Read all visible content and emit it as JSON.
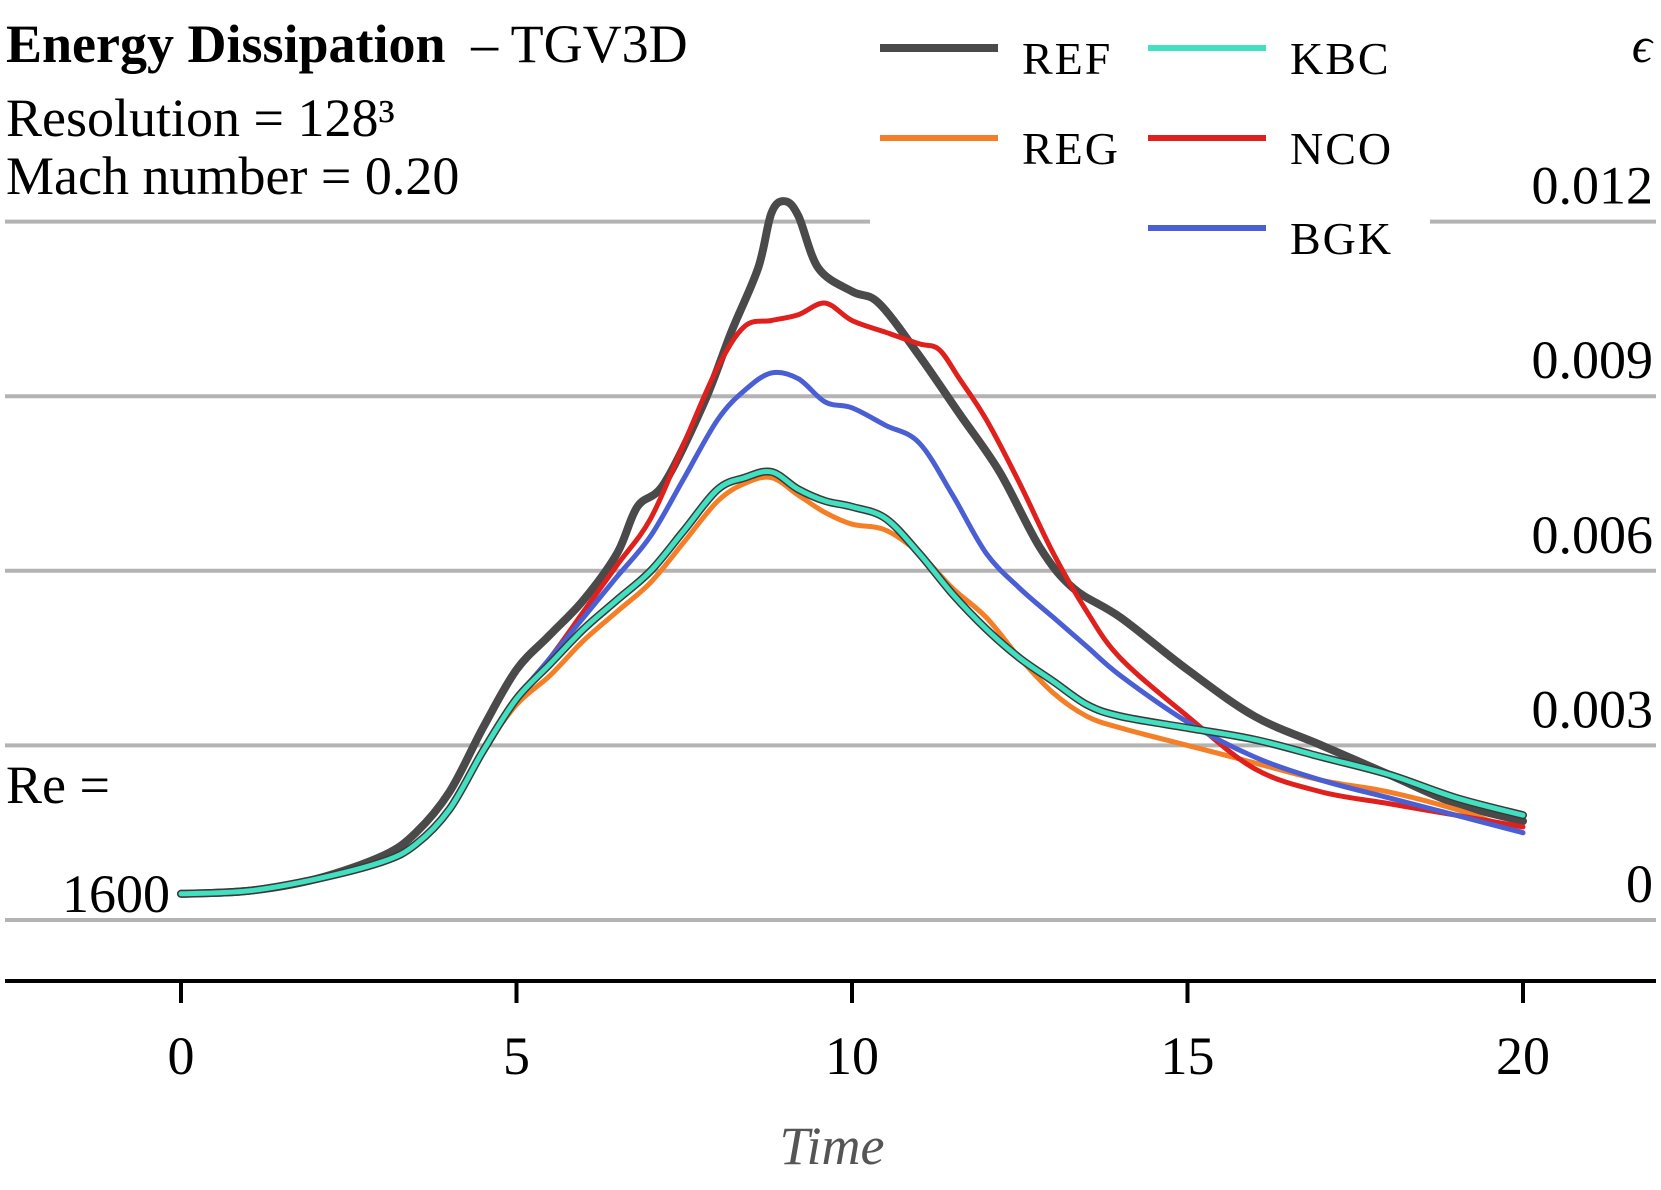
{
  "chart_data": {
    "type": "line",
    "title": "Energy Dissipation",
    "title_suffix": "– TGV3D",
    "subtitle_lines": [
      "Resolution = 128³",
      "Mach number = 0.20"
    ],
    "annotation": {
      "line1": "Re =",
      "line2": "1600"
    },
    "xlabel": "Time",
    "ylabel": "ϵ",
    "xlim": [
      -2.6,
      22
    ],
    "ylim": [
      -0.0014,
      0.0145
    ],
    "x_ticks": [
      0,
      5,
      10,
      15,
      20
    ],
    "x_tick_labels": [
      "0",
      "5",
      "10",
      "15",
      "20"
    ],
    "y_ticks": [
      0,
      0.003,
      0.006,
      0.009,
      0.012
    ],
    "y_tick_labels": [
      "0",
      "0.003",
      "0.006",
      "0.009",
      "0.012"
    ],
    "grid": "horizontal",
    "legend_position": "top-right",
    "series": [
      {
        "name": "REF",
        "color": "#4a4a4a",
        "x": [
          0,
          1,
          2,
          3,
          3.5,
          4,
          4.5,
          5,
          5.5,
          6,
          6.5,
          6.8,
          7.2,
          7.8,
          8.2,
          8.6,
          8.8,
          9.0,
          9.2,
          9.5,
          10.0,
          10.4,
          11.0,
          11.6,
          12.2,
          12.8,
          13.3,
          14,
          15,
          16,
          17,
          18,
          19,
          20
        ],
        "y": [
          0.00045,
          0.0005,
          0.0007,
          0.0011,
          0.0015,
          0.0022,
          0.0033,
          0.0043,
          0.0049,
          0.0055,
          0.0063,
          0.0071,
          0.0075,
          0.0089,
          0.0101,
          0.0112,
          0.01215,
          0.01235,
          0.0121,
          0.0112,
          0.0108,
          0.0106,
          0.0097,
          0.0087,
          0.0077,
          0.0064,
          0.0057,
          0.0052,
          0.0043,
          0.0035,
          0.003,
          0.0025,
          0.002,
          0.0017
        ]
      },
      {
        "name": "REG",
        "color": "#f47f27",
        "x": [
          0,
          1,
          2,
          3,
          3.5,
          4,
          4.5,
          5,
          5.5,
          6,
          6.5,
          7,
          7.5,
          8,
          8.4,
          8.8,
          9.2,
          9.6,
          10,
          10.5,
          11,
          11.5,
          12,
          12.5,
          13,
          13.5,
          14,
          15,
          16,
          17,
          18,
          19,
          20
        ],
        "y": [
          0.00045,
          0.0005,
          0.0007,
          0.001,
          0.0013,
          0.0019,
          0.0029,
          0.0037,
          0.0042,
          0.0048,
          0.0053,
          0.0058,
          0.0065,
          0.0072,
          0.0075,
          0.0076,
          0.0073,
          0.007,
          0.0068,
          0.0067,
          0.0063,
          0.0057,
          0.0052,
          0.0045,
          0.0039,
          0.0035,
          0.0033,
          0.003,
          0.0027,
          0.0024,
          0.0022,
          0.0019,
          0.0015
        ]
      },
      {
        "name": "KBC",
        "color": "#40e0c0",
        "x": [
          0,
          1,
          2,
          3,
          3.5,
          4,
          4.5,
          5,
          5.5,
          6,
          6.5,
          7,
          7.5,
          8,
          8.4,
          8.8,
          9.2,
          9.6,
          10,
          10.5,
          11,
          11.5,
          12,
          12.5,
          13,
          13.5,
          14,
          15,
          16,
          17,
          18,
          19,
          20
        ],
        "y": [
          0.00045,
          0.0005,
          0.0007,
          0.001,
          0.0013,
          0.0019,
          0.0029,
          0.0038,
          0.0044,
          0.005,
          0.0055,
          0.006,
          0.0067,
          0.0074,
          0.0076,
          0.0077,
          0.0074,
          0.0072,
          0.0071,
          0.0069,
          0.0063,
          0.0056,
          0.005,
          0.0045,
          0.0041,
          0.0037,
          0.0035,
          0.0033,
          0.0031,
          0.0028,
          0.0025,
          0.0021,
          0.0018
        ]
      },
      {
        "name": "NCO",
        "color": "#e0201c",
        "x": [
          0,
          1,
          2,
          3,
          3.5,
          4,
          4.5,
          5,
          5.5,
          6,
          6.5,
          7,
          7.5,
          8,
          8.4,
          8.8,
          9.2,
          9.6,
          10,
          10.5,
          11,
          11.3,
          11.6,
          12,
          12.5,
          13,
          13.5,
          14,
          15,
          16,
          17,
          18,
          19,
          20
        ],
        "y": [
          0.00045,
          0.0005,
          0.0007,
          0.001,
          0.0013,
          0.0019,
          0.0029,
          0.0038,
          0.0045,
          0.0053,
          0.0061,
          0.0069,
          0.0082,
          0.0095,
          0.0102,
          0.0103,
          0.0104,
          0.0106,
          0.0103,
          0.0101,
          0.0099,
          0.0098,
          0.0093,
          0.0086,
          0.0075,
          0.0063,
          0.0053,
          0.0045,
          0.0035,
          0.0026,
          0.0022,
          0.002,
          0.0018,
          0.0016
        ]
      },
      {
        "name": "BGK",
        "color": "#4a5fd3",
        "x": [
          0,
          1,
          2,
          3,
          3.5,
          4,
          4.5,
          5,
          5.5,
          6,
          6.5,
          7,
          7.5,
          8,
          8.4,
          8.8,
          9.2,
          9.6,
          10,
          10.5,
          11,
          11.5,
          12,
          12.5,
          13,
          13.5,
          14,
          15,
          16,
          17,
          18,
          19,
          20
        ],
        "y": [
          0.00045,
          0.0005,
          0.0007,
          0.001,
          0.0013,
          0.0019,
          0.0029,
          0.0038,
          0.0045,
          0.0052,
          0.0059,
          0.0066,
          0.0076,
          0.0086,
          0.0091,
          0.0094,
          0.0093,
          0.0089,
          0.0088,
          0.0085,
          0.0082,
          0.0073,
          0.0063,
          0.0057,
          0.0052,
          0.0047,
          0.0042,
          0.0034,
          0.0028,
          0.0024,
          0.0021,
          0.0018,
          0.0015
        ]
      }
    ]
  }
}
